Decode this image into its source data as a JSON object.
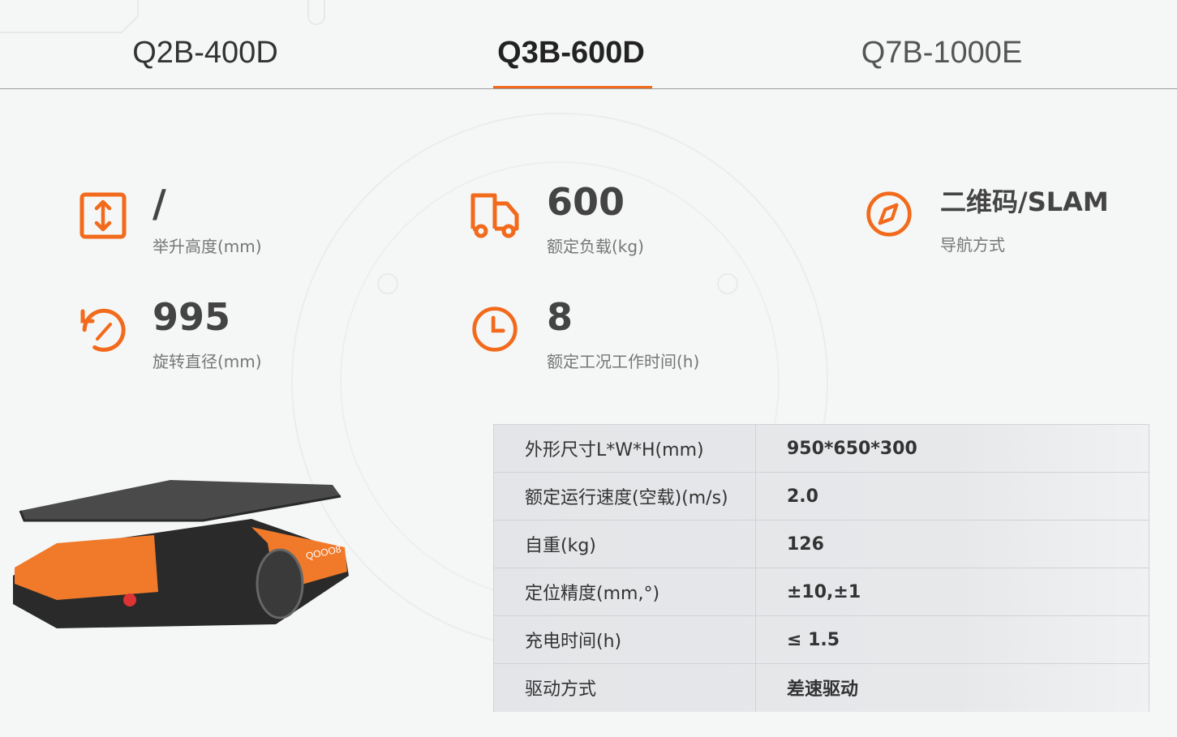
{
  "tabs": [
    {
      "label": "Q2B-400D",
      "active": false
    },
    {
      "label": "Q3B-600D",
      "active": true
    },
    {
      "label": "Q7B-1000E",
      "active": false
    }
  ],
  "accent_color": "#f26a1b",
  "stats": [
    {
      "icon": "lift-height-icon",
      "value": "/",
      "label": "举升高度(mm)"
    },
    {
      "icon": "truck-icon",
      "value": "600",
      "label": "额定负载(kg)"
    },
    {
      "icon": "compass-icon",
      "value": "二维码/SLAM",
      "label": "导航方式"
    },
    {
      "icon": "rotate-icon",
      "value": "995",
      "label": "旋转直径(mm)"
    },
    {
      "icon": "clock-icon",
      "value": "8",
      "label": "额定工况工作时间(h)"
    }
  ],
  "specs": [
    {
      "key": "外形尺寸L*W*H(mm)",
      "value": "950*650*300"
    },
    {
      "key": "额定运行速度(空载)(m/s)",
      "value": "2.0"
    },
    {
      "key": "自重(kg)",
      "value": "126"
    },
    {
      "key": "定位精度(mm,°)",
      "value": "±10,±1"
    },
    {
      "key": "充电时间(h)",
      "value": "≤ 1.5"
    },
    {
      "key": "驱动方式",
      "value": "差速驱动"
    }
  ],
  "robot_label": "QOOO8"
}
